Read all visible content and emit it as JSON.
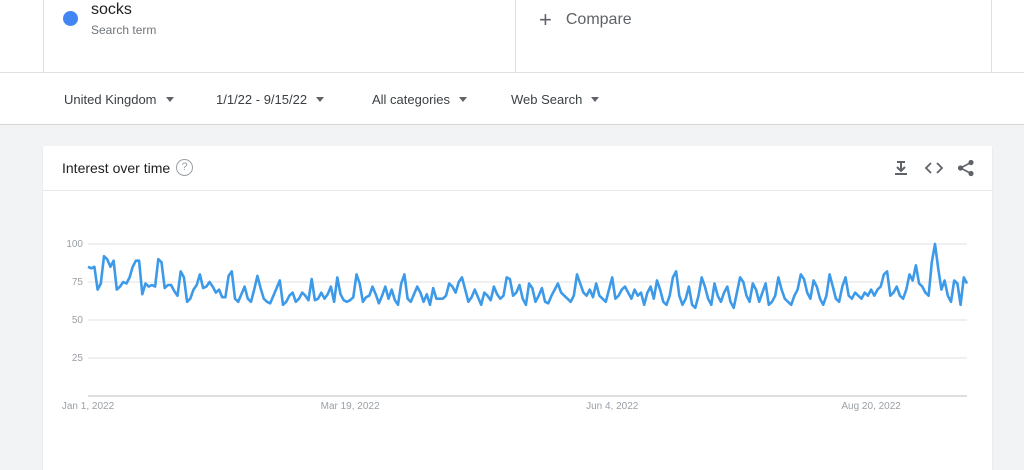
{
  "search_term": {
    "name": "socks",
    "subtitle": "Search term",
    "color": "#4285f4"
  },
  "compare": {
    "label": "Compare"
  },
  "filters": {
    "region": "United Kingdom",
    "date_range": "1/1/22 - 9/15/22",
    "category": "All categories",
    "search_type": "Web Search"
  },
  "panel": {
    "title": "Interest over time",
    "help_icon": "help-circle-icon",
    "actions": [
      "download-icon",
      "embed-code-icon",
      "share-icon"
    ]
  },
  "chart_data": {
    "type": "line",
    "title": "Interest over time",
    "ylim": [
      0,
      100
    ],
    "yticks": [
      25,
      50,
      75,
      100
    ],
    "grid": true,
    "x_tick_labels": [
      {
        "label": "Jan 1, 2022",
        "index": 0
      },
      {
        "label": "Mar 19, 2022",
        "index": 77
      },
      {
        "label": "Jun 4, 2022",
        "index": 154
      },
      {
        "label": "Aug 20, 2022",
        "index": 231
      }
    ],
    "x_start": "2022-01-01",
    "x_end": "2022-09-15",
    "series": [
      {
        "name": "socks",
        "color": "#3d9ae8",
        "values": [
          85,
          84,
          85,
          70,
          74,
          92,
          90,
          85,
          89,
          70,
          72,
          75,
          74,
          78,
          85,
          89,
          89,
          67,
          74,
          72,
          73,
          72,
          90,
          88,
          71,
          73,
          73,
          69,
          66,
          82,
          78,
          62,
          64,
          70,
          73,
          80,
          71,
          72,
          75,
          72,
          68,
          70,
          65,
          65,
          79,
          82,
          64,
          62,
          67,
          72,
          64,
          62,
          70,
          79,
          71,
          64,
          62,
          61,
          66,
          71,
          76,
          60,
          62,
          66,
          68,
          62,
          64,
          68,
          66,
          63,
          77,
          63,
          64,
          68,
          64,
          67,
          72,
          62,
          78,
          67,
          63,
          62,
          63,
          65,
          80,
          74,
          62,
          65,
          66,
          72,
          67,
          61,
          66,
          72,
          64,
          70,
          63,
          60,
          74,
          80,
          64,
          62,
          67,
          72,
          68,
          62,
          67,
          60,
          71,
          64,
          64,
          64,
          66,
          74,
          72,
          68,
          75,
          78,
          70,
          62,
          65,
          70,
          65,
          60,
          68,
          66,
          63,
          72,
          67,
          64,
          66,
          78,
          77,
          66,
          68,
          73,
          64,
          60,
          74,
          71,
          62,
          66,
          71,
          62,
          61,
          66,
          70,
          74,
          68,
          66,
          64,
          62,
          66,
          80,
          74,
          68,
          66,
          70,
          65,
          74,
          66,
          64,
          62,
          70,
          78,
          64,
          66,
          70,
          72,
          68,
          64,
          70,
          66,
          68,
          60,
          68,
          72,
          64,
          76,
          70,
          62,
          60,
          66,
          78,
          82,
          66,
          60,
          64,
          72,
          60,
          58,
          66,
          78,
          72,
          64,
          60,
          74,
          66,
          62,
          68,
          72,
          62,
          58,
          68,
          78,
          75,
          66,
          62,
          74,
          70,
          62,
          68,
          74,
          60,
          62,
          66,
          78,
          70,
          64,
          62,
          60,
          66,
          70,
          80,
          77,
          68,
          64,
          76,
          72,
          64,
          60,
          66,
          80,
          72,
          64,
          62,
          72,
          78,
          66,
          64,
          68,
          66,
          64,
          68,
          66,
          70,
          66,
          70,
          72,
          80,
          82,
          66,
          68,
          72,
          66,
          64,
          70,
          80,
          76,
          86,
          74,
          72,
          68,
          66,
          88,
          100,
          84,
          70,
          76,
          66,
          62,
          76,
          74,
          60,
          78,
          74
        ],
        "note": "weekly values, 37 weeks approximated at higher resolution; peak 100 near Sep 2022"
      }
    ]
  }
}
